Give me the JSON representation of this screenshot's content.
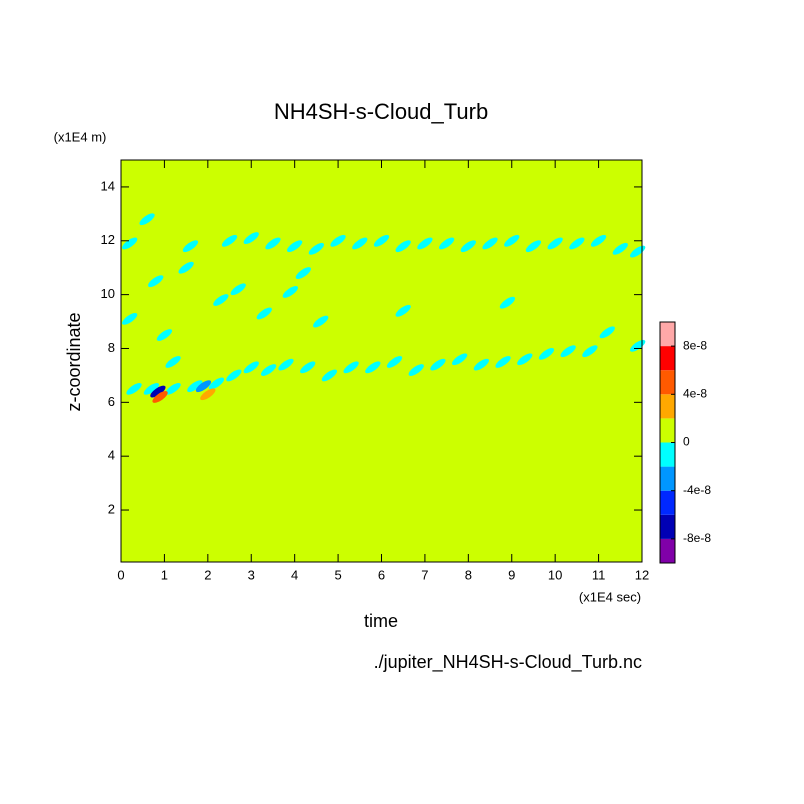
{
  "chart_data": {
    "type": "contour",
    "title": "NH4SH-s-Cloud_Turb",
    "xlabel": "time",
    "ylabel": "z-coordinate",
    "x_unit": "(x1E4 sec)",
    "y_unit": "(x1E4 m)",
    "footer": "./jupiter_NH4SH-s-Cloud_Turb.nc",
    "xlim": [
      0,
      12
    ],
    "ylim": [
      0.07,
      15
    ],
    "xticks": [
      0,
      1,
      2,
      3,
      4,
      5,
      6,
      7,
      8,
      9,
      10,
      11,
      12
    ],
    "yticks": [
      2,
      4,
      6,
      8,
      10,
      12,
      14
    ],
    "background_value": 0,
    "levels": [
      -1e-07,
      -8e-08,
      -6e-08,
      -4e-08,
      -2e-08,
      0,
      2e-08,
      4e-08,
      6e-08,
      8e-08,
      1e-07
    ],
    "colors": [
      "#8000a8",
      "#0000b4",
      "#0028ff",
      "#0096ff",
      "#00ffff",
      "#ccff00",
      "#ffa800",
      "#ff5a00",
      "#ff0000",
      "#ffa8a8"
    ],
    "colorbar_ticks": [
      {
        "value": 8e-08,
        "label": "8e-8"
      },
      {
        "value": 4e-08,
        "label": "4e-8"
      },
      0,
      {
        "value": -4e-08,
        "label": "-4e-8"
      },
      {
        "value": -8e-08,
        "label": "-8e-8"
      }
    ],
    "patches": {
      "x": [
        0.2,
        1.6,
        2.5,
        3.0,
        3.5,
        4.0,
        4.5,
        5.0,
        5.5,
        6.0,
        6.5,
        7.0,
        7.5,
        8.0,
        8.5,
        9.0,
        9.5,
        10.0,
        10.5,
        11.0,
        11.5,
        11.9,
        0.3,
        0.7,
        1.2,
        1.7,
        2.2,
        2.6,
        3.0,
        3.4,
        3.8,
        4.3,
        4.8,
        5.3,
        5.8,
        6.3,
        6.8,
        7.3,
        7.8,
        8.3,
        8.8,
        9.3,
        9.8,
        10.3,
        10.8,
        11.2,
        11.9,
        0.8,
        1.0,
        1.5,
        2.3,
        2.7,
        3.3,
        3.9,
        4.6,
        4.2,
        0.2,
        6.5,
        8.9,
        0.6,
        1.2,
        0.85,
        0.9,
        2.0,
        1.9
      ],
      "y": [
        11.9,
        11.8,
        12.0,
        12.1,
        11.9,
        11.8,
        11.7,
        12.0,
        11.9,
        12.0,
        11.8,
        11.9,
        11.9,
        11.8,
        11.9,
        12.0,
        11.8,
        11.9,
        11.9,
        12.0,
        11.7,
        11.6,
        6.5,
        6.5,
        6.5,
        6.6,
        6.7,
        7.0,
        7.3,
        7.2,
        7.4,
        7.3,
        7.0,
        7.3,
        7.3,
        7.5,
        7.2,
        7.4,
        7.6,
        7.4,
        7.5,
        7.6,
        7.8,
        7.9,
        7.9,
        8.6,
        8.1,
        10.5,
        8.5,
        11.0,
        9.8,
        10.2,
        9.3,
        10.1,
        9.0,
        10.8,
        9.1,
        9.4,
        9.7,
        12.8,
        7.5,
        6.4,
        6.2,
        6.3,
        6.6
      ],
      "values": [
        -1e-08,
        -1e-08,
        -1e-08,
        -1e-08,
        -1e-08,
        -1e-08,
        -1e-08,
        -1e-08,
        -1e-08,
        -1e-08,
        -1e-08,
        -1e-08,
        -1e-08,
        -1e-08,
        -1e-08,
        -1e-08,
        -1e-08,
        -1e-08,
        -1e-08,
        -1e-08,
        -1e-08,
        -1e-08,
        -1e-08,
        -1e-08,
        -1e-08,
        -1e-08,
        -1e-08,
        -1e-08,
        -1e-08,
        -1e-08,
        -1e-08,
        -1e-08,
        -1e-08,
        -1e-08,
        -1e-08,
        -1e-08,
        -1e-08,
        -1e-08,
        -1e-08,
        -1e-08,
        -1e-08,
        -1e-08,
        -1e-08,
        -1e-08,
        -1e-08,
        -1e-08,
        -1e-08,
        -1e-08,
        -1e-08,
        -1e-08,
        -1e-08,
        -1e-08,
        -1e-08,
        -1e-08,
        -1e-08,
        -1e-08,
        -1e-08,
        -1e-08,
        -1e-08,
        -1e-08,
        -1e-08,
        -7e-08,
        5e-08,
        3e-08,
        -3e-08
      ]
    }
  }
}
